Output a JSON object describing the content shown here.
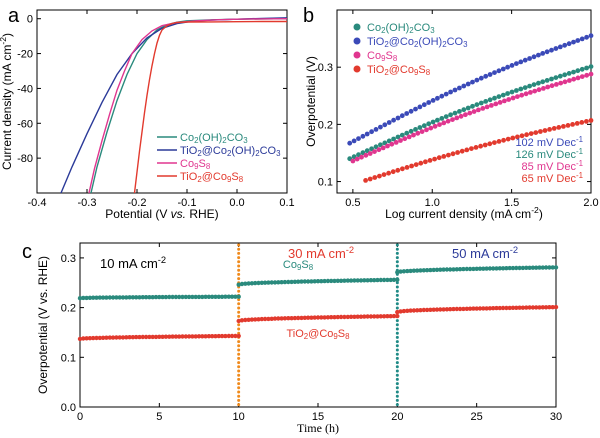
{
  "chart_data": [
    {
      "id": "a",
      "type": "line",
      "panel_label": "a",
      "xlabel_parts": [
        "Potential (V ",
        "vs.",
        " RHE)"
      ],
      "ylabel": "Current density (mA cm",
      "ylabel_sup": "-2",
      "ylabel_close": ")",
      "xlim": [
        -0.4,
        0.1
      ],
      "ylim": [
        -100,
        5
      ],
      "xticks": [
        -0.4,
        -0.3,
        -0.2,
        -0.1,
        0.0,
        0.1
      ],
      "xtick_labels": [
        "-0.4",
        "-0.3",
        "-0.2",
        "-0.1",
        "0.0",
        "0.1"
      ],
      "yticks": [
        0,
        -20,
        -40,
        -60,
        -80
      ],
      "ytick_labels": [
        "0",
        "-20",
        "-40",
        "-60",
        "-80"
      ],
      "legend_position": "bottom-right",
      "series": [
        {
          "name": "Co2(OH)2CO3",
          "legend_parts": [
            [
              "Co",
              ""
            ],
            [
              "2",
              "sub"
            ],
            [
              "(OH)",
              ""
            ],
            [
              "2",
              "sub"
            ],
            [
              "CO",
              ""
            ],
            [
              "3",
              "sub"
            ]
          ],
          "color": "#2a8a7d",
          "x": [
            -0.292,
            -0.28,
            -0.26,
            -0.24,
            -0.22,
            -0.2,
            -0.18,
            -0.16,
            -0.14,
            -0.12,
            -0.1,
            -0.05,
            0.0,
            0.05,
            0.1
          ],
          "y": [
            -100,
            -85,
            -65,
            -47,
            -32,
            -20,
            -12,
            -6.5,
            -3.5,
            -2,
            -1.2,
            -0.6,
            -0.3,
            -0.1,
            0
          ]
        },
        {
          "name": "TiO2@Co2(OH)2CO3",
          "legend_parts": [
            [
              "TiO",
              ""
            ],
            [
              "2",
              "sub"
            ],
            [
              "@Co",
              ""
            ],
            [
              "2",
              "sub"
            ],
            [
              "(OH)",
              ""
            ],
            [
              "2",
              "sub"
            ],
            [
              "CO",
              ""
            ],
            [
              "3",
              "sub"
            ]
          ],
          "color": "#2b3a99",
          "x": [
            -0.352,
            -0.33,
            -0.3,
            -0.27,
            -0.24,
            -0.21,
            -0.18,
            -0.15,
            -0.12,
            -0.09,
            -0.05,
            0.0,
            0.05,
            0.1
          ],
          "y": [
            -100,
            -85,
            -66,
            -48,
            -32,
            -20,
            -11,
            -5.5,
            -2.8,
            -1.5,
            -0.8,
            -0.3,
            0.2,
            0.5
          ]
        },
        {
          "name": "Co9S8",
          "legend_parts": [
            [
              "Co",
              ""
            ],
            [
              "9",
              "sub"
            ],
            [
              "S",
              ""
            ],
            [
              "8",
              "sub"
            ]
          ],
          "color": "#e0368f",
          "x": [
            -0.296,
            -0.285,
            -0.27,
            -0.255,
            -0.24,
            -0.225,
            -0.21,
            -0.19,
            -0.17,
            -0.15,
            -0.12,
            -0.08,
            -0.04,
            0.0,
            0.05,
            0.1
          ],
          "y": [
            -100,
            -86,
            -70,
            -55,
            -41,
            -30,
            -20,
            -12,
            -7,
            -4,
            -2.2,
            -1.2,
            -0.6,
            -0.3,
            -0.1,
            0
          ]
        },
        {
          "name": "TiO2@Co9S8",
          "legend_parts": [
            [
              "TiO",
              ""
            ],
            [
              "2",
              "sub"
            ],
            [
              "@Co",
              ""
            ],
            [
              "9",
              "sub"
            ],
            [
              "S",
              ""
            ],
            [
              "8",
              "sub"
            ]
          ],
          "color": "#e23a2e",
          "x": [
            -0.205,
            -0.2,
            -0.195,
            -0.19,
            -0.185,
            -0.18,
            -0.175,
            -0.17,
            -0.165,
            -0.16,
            -0.155,
            -0.15,
            -0.14,
            -0.13,
            -0.12,
            -0.1,
            -0.05,
            0.0,
            0.05,
            0.1
          ],
          "y": [
            -100,
            -88,
            -76,
            -65,
            -54,
            -44,
            -35,
            -27,
            -20,
            -14,
            -9.5,
            -6.5,
            -4,
            -2.8,
            -2.2,
            -1.9,
            -1.8,
            -1.7,
            -1.6,
            -1.6
          ]
        }
      ]
    },
    {
      "id": "b",
      "type": "scatter",
      "panel_label": "b",
      "xlabel": "Log current density (mA cm",
      "xlabel_sup": "-2",
      "xlabel_close": ")",
      "ylabel": "Overpotential (V)",
      "xlim": [
        0.4,
        2.0
      ],
      "ylim": [
        0.08,
        0.4
      ],
      "xticks": [
        0.5,
        1.0,
        1.5,
        2.0
      ],
      "xtick_labels": [
        "0.5",
        "1.0",
        "1.5",
        "2.0"
      ],
      "yticks": [
        0.1,
        0.2,
        0.3
      ],
      "ytick_labels": [
        "0.1",
        "0.2",
        "0.3"
      ],
      "legend_position": "top-left",
      "tafel_position": "bottom-right",
      "series": [
        {
          "name": "Co2(OH)2CO3",
          "legend_parts": [
            [
              "Co",
              ""
            ],
            [
              "2",
              "sub"
            ],
            [
              "(OH)",
              ""
            ],
            [
              "2",
              "sub"
            ],
            [
              "CO",
              ""
            ],
            [
              "3",
              "sub"
            ]
          ],
          "color": "#2a8a7d",
          "tafel": "126 mV Dec",
          "tafel_sup": "-1",
          "x_start": 0.48,
          "x_end": 2.0,
          "y_start": 0.14,
          "y_end": 0.301,
          "n": 56
        },
        {
          "name": "TiO2@Co2(OH)2CO3",
          "legend_parts": [
            [
              "TiO",
              ""
            ],
            [
              "2",
              "sub"
            ],
            [
              "@Co",
              ""
            ],
            [
              "2",
              "sub"
            ],
            [
              "(OH)",
              ""
            ],
            [
              "2",
              "sub"
            ],
            [
              "CO",
              ""
            ],
            [
              "3",
              "sub"
            ]
          ],
          "color": "#3b4ab8",
          "tafel": "102 mV Dec",
          "tafel_sup": "-1",
          "x_start": 0.48,
          "x_end": 2.0,
          "y_start": 0.167,
          "y_end": 0.355,
          "n": 56
        },
        {
          "name": "Co9S8",
          "legend_parts": [
            [
              "Co",
              ""
            ],
            [
              "9",
              "sub"
            ],
            [
              "S",
              ""
            ],
            [
              "8",
              "sub"
            ]
          ],
          "color": "#e0368f",
          "tafel": "85 mV Dec",
          "tafel_sup": "-1",
          "x_start": 0.5,
          "x_end": 2.0,
          "y_start": 0.136,
          "y_end": 0.288,
          "n": 56
        },
        {
          "name": "TiO2@Co9S8",
          "legend_parts": [
            [
              "TiO",
              ""
            ],
            [
              "2",
              "sub"
            ],
            [
              "@Co",
              ""
            ],
            [
              "9",
              "sub"
            ],
            [
              "S",
              ""
            ],
            [
              "8",
              "sub"
            ]
          ],
          "color": "#e23a2e",
          "tafel": "65 mV Dec",
          "tafel_sup": "-1",
          "x_start": 0.58,
          "x_end": 2.0,
          "y_start": 0.102,
          "y_end": 0.207,
          "n": 50
        }
      ]
    },
    {
      "id": "c",
      "type": "scatter",
      "panel_label": "c",
      "xlabel": "Time (h)",
      "ylabel": "Overpotential (V vs. RHE)",
      "xlim": [
        0,
        30
      ],
      "ylim": [
        0.0,
        0.33
      ],
      "xticks": [
        0,
        5,
        10,
        15,
        20,
        25,
        30
      ],
      "xtick_labels": [
        "0",
        "5",
        "10",
        "15",
        "20",
        "25",
        "30"
      ],
      "yticks": [
        0.0,
        0.1,
        0.2,
        0.3
      ],
      "ytick_labels": [
        "0.0",
        "0.1",
        "0.2",
        "0.3"
      ],
      "segments": [
        {
          "label": "10 mA cm",
          "label_sup": "-2",
          "color": "#000000",
          "t_start": 0,
          "t_end": 10
        },
        {
          "label": "30 mA cm",
          "label_sup": "-2",
          "color": "#e23a2e",
          "t_start": 10,
          "t_end": 20
        },
        {
          "label": "50 mA cm",
          "label_sup": "-2",
          "color": "#2b3a99",
          "t_start": 20,
          "t_end": 30
        }
      ],
      "dividers": [
        {
          "t": 10,
          "color": "#f08a1c"
        },
        {
          "t": 20,
          "color": "#1f8a86"
        }
      ],
      "series": [
        {
          "name": "Co9S8",
          "label_parts": [
            [
              "Co",
              ""
            ],
            [
              "9",
              "sub"
            ],
            [
              "S",
              ""
            ],
            [
              "8",
              "sub"
            ]
          ],
          "color": "#2a8a7d",
          "label_pos": "above",
          "levels": [
            [
              0.219,
              0.222
            ],
            [
              0.246,
              0.256
            ],
            [
              0.271,
              0.281
            ]
          ]
        },
        {
          "name": "TiO2@Co9S8",
          "label_parts": [
            [
              "TiO",
              ""
            ],
            [
              "2",
              "sub"
            ],
            [
              "@Co",
              ""
            ],
            [
              "9",
              "sub"
            ],
            [
              "S",
              ""
            ],
            [
              "8",
              "sub"
            ]
          ],
          "color": "#e23a2e",
          "label_pos": "below",
          "levels": [
            [
              0.137,
              0.143
            ],
            [
              0.173,
              0.183
            ],
            [
              0.191,
              0.201
            ]
          ]
        }
      ]
    }
  ]
}
